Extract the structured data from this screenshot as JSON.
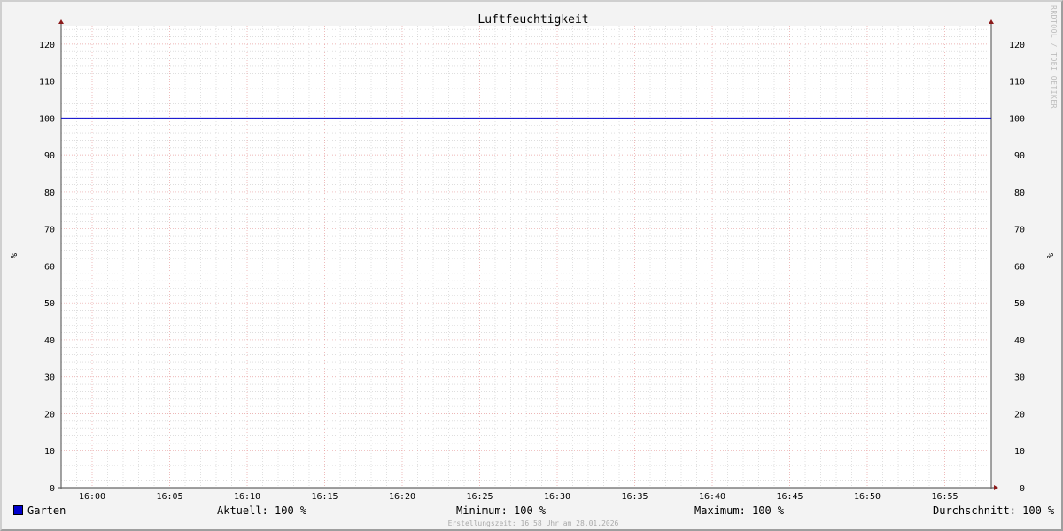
{
  "chart_data": {
    "type": "line",
    "title": "Luftfeuchtigkeit",
    "ylabel": "%",
    "ylabel_right": "%",
    "ylim": [
      0,
      125
    ],
    "yticks": [
      0,
      10,
      20,
      30,
      40,
      50,
      60,
      70,
      80,
      90,
      100,
      110,
      120
    ],
    "xlim": [
      "15:58",
      "16:58"
    ],
    "xticks": [
      "16:00",
      "16:05",
      "16:10",
      "16:15",
      "16:20",
      "16:25",
      "16:30",
      "16:35",
      "16:40",
      "16:45",
      "16:50",
      "16:55"
    ],
    "grid": true,
    "series": [
      {
        "name": "Garten",
        "color": "#0000cc",
        "x": [
          "15:58",
          "16:58"
        ],
        "values": [
          100,
          100
        ]
      }
    ],
    "legend_placement": "bottom",
    "stats": {
      "current": "Aktuell: 100 %",
      "minimum": "Minimum: 100 %",
      "maximum": "Maximum: 100 %",
      "average": "Durchschnitt: 100 %"
    }
  },
  "watermark": "RRDTOOL / TOBI OETIKER",
  "footer": "Erstellungszeit: 16:58 Uhr am 28.01.2026",
  "colors": {
    "major_grid": "#e8a0a0",
    "minor_grid": "#cccccc",
    "axis": "#666666",
    "arrow": "#8b1a1a"
  }
}
